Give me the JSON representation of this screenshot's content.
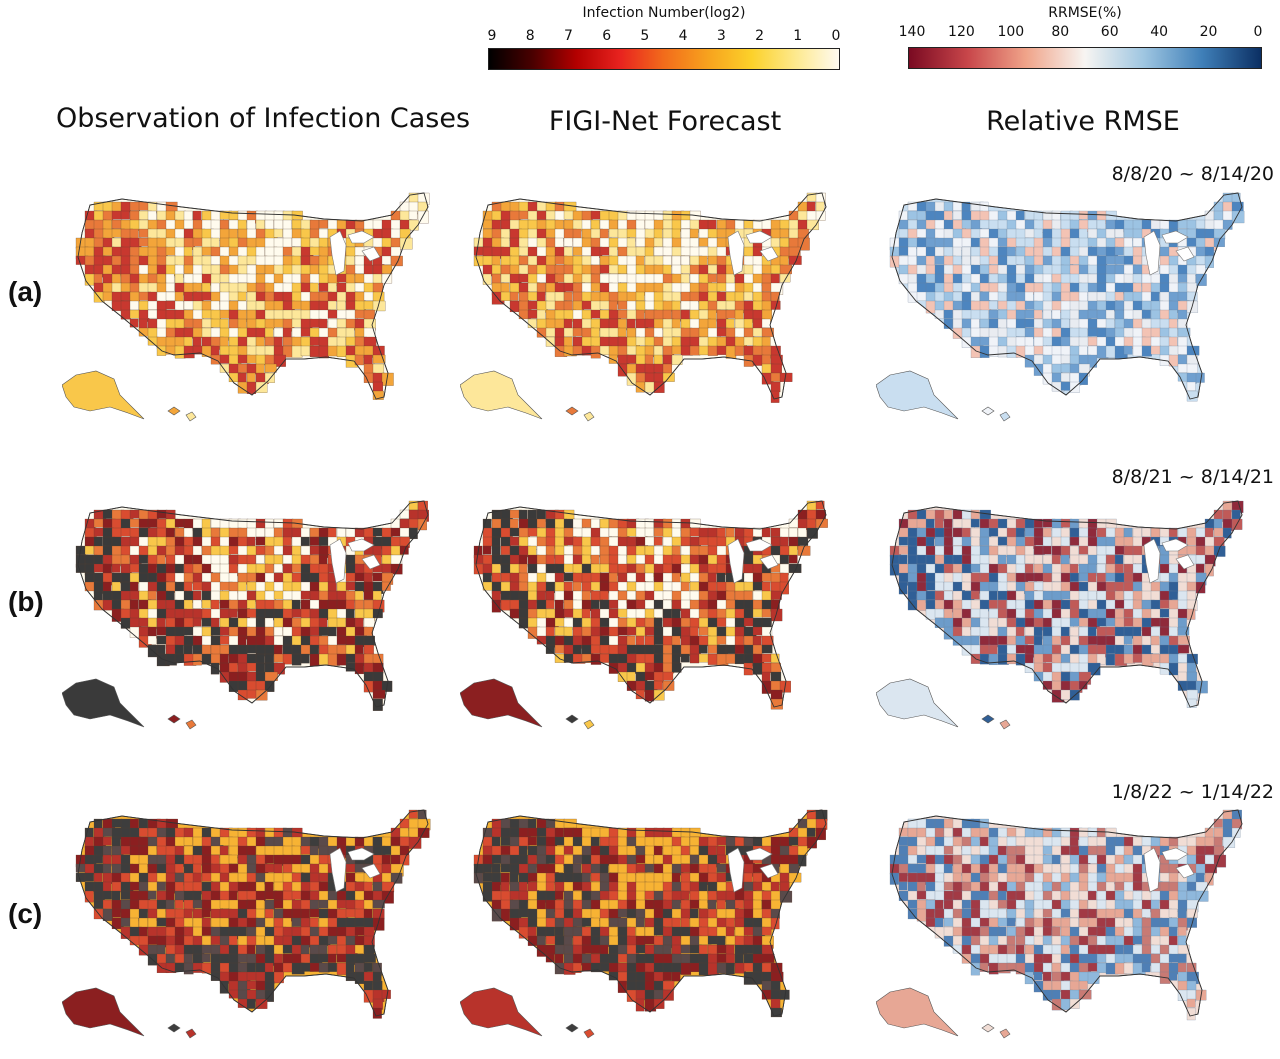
{
  "legends": {
    "infection": {
      "title": "Infection Number(log2)",
      "ticks": [
        "9",
        "8",
        "7",
        "6",
        "5",
        "4",
        "3",
        "2",
        "1",
        "0"
      ],
      "colors": [
        "#000000",
        "#4a0000",
        "#b30000",
        "#e8231f",
        "#f26c1b",
        "#f7a21e",
        "#fcd12a",
        "#fde98d",
        "#fffaf0"
      ]
    },
    "rrmse": {
      "title": "RRMSE(%)",
      "ticks": [
        "140",
        "120",
        "100",
        "80",
        "60",
        "40",
        "20",
        "0"
      ],
      "colors": [
        "#7a0a22",
        "#c8464a",
        "#f0a48a",
        "#f7f5f2",
        "#9fc6e1",
        "#3f7fb8",
        "#0b2f63"
      ]
    }
  },
  "columns": {
    "observation": "Observation of Infection Cases",
    "forecast": "FIGI-Net Forecast",
    "rrmse": "Relative RMSE"
  },
  "rows": [
    {
      "label": "(a)",
      "date": "8/8/20 ~ 8/14/20",
      "infection_palette": [
        "#fffbee",
        "#fde79a",
        "#f9c74a",
        "#f3a53a",
        "#e8793a",
        "#c8382f"
      ],
      "rrmse_palette": [
        "#c9def0",
        "#9cc3e3",
        "#6f9fcf",
        "#4d85bf",
        "#e9ecf1",
        "#f3c3b4",
        "#f0f3f8"
      ]
    },
    {
      "label": "(b)",
      "date": "8/8/21 ~ 8/14/21",
      "infection_palette": [
        "#fffbee",
        "#f9c74a",
        "#e8793a",
        "#d94c30",
        "#b8332b",
        "#8b1f20",
        "#3a3a3a"
      ],
      "rrmse_palette": [
        "#f1ddd5",
        "#e7a795",
        "#c05a58",
        "#8f2a3b",
        "#dbe6f0",
        "#6d9cca",
        "#305f96"
      ]
    },
    {
      "label": "(c)",
      "date": "1/8/22 ~ 1/14/22",
      "infection_palette": [
        "#f7b334",
        "#d94c30",
        "#b8332b",
        "#8b1f20",
        "#5a4a4a",
        "#3d3d3d"
      ],
      "rrmse_palette": [
        "#f1ddd5",
        "#e7a795",
        "#c87a74",
        "#a23a45",
        "#dbe6f0",
        "#8fb8dc",
        "#4f7fb5"
      ]
    }
  ]
}
